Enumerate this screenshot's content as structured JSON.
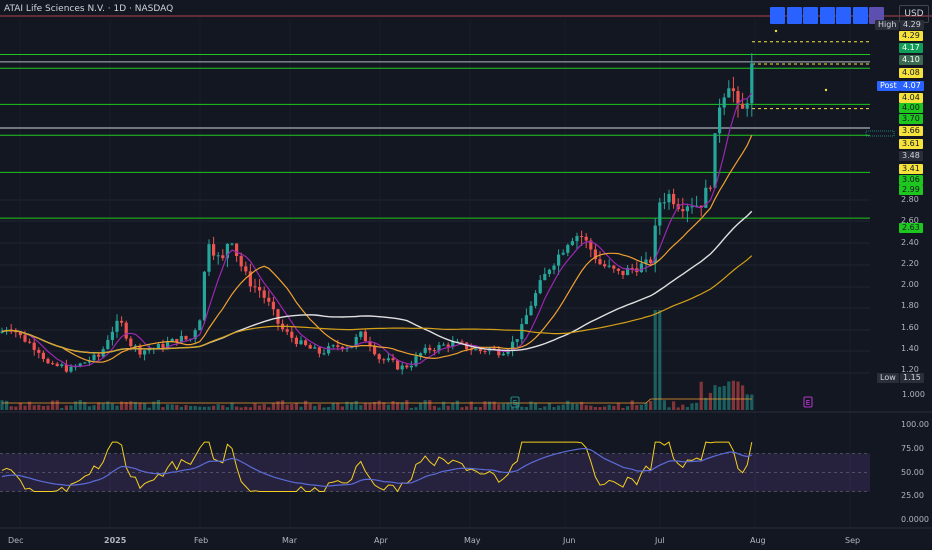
{
  "header": {
    "title": "ATAI Life Sciences N.V. · 1D · NASDAQ",
    "currency": "USD"
  },
  "toolbar": {
    "buttons": [
      "btn-1",
      "btn-2",
      "btn-3",
      "btn-4",
      "btn-5",
      "btn-6",
      "btn-7"
    ]
  },
  "price_axis": {
    "labels": [
      "2.80",
      "2.60",
      "2.40",
      "2.20",
      "2.00",
      "1.80",
      "1.60",
      "1.40",
      "1.20"
    ],
    "high_label": "High",
    "high_value": "4.29",
    "low_label": "Low",
    "low_value": "1.15",
    "post_label": "Post",
    "post_value": "4.07"
  },
  "price_tags": [
    {
      "v": "4.29",
      "bg": "#f5e33b",
      "fg": "#131722",
      "y": 36
    },
    {
      "v": "4.17",
      "bg": "#0f9d58",
      "fg": "#ffffff",
      "y": 48
    },
    {
      "v": "4.10",
      "bg": "#3d6b52",
      "fg": "#ffffff",
      "y": 60
    },
    {
      "v": "4.08",
      "bg": "#f5e33b",
      "fg": "#131722",
      "y": 73
    },
    {
      "v": "4.04",
      "bg": "#f5e33b",
      "fg": "#131722",
      "y": 98
    },
    {
      "v": "4.00",
      "bg": "#1ec71e",
      "fg": "#131722",
      "y": 108
    },
    {
      "v": "3.70",
      "bg": "#1ec71e",
      "fg": "#131722",
      "y": 119
    },
    {
      "v": "3.66",
      "bg": "#f5e33b",
      "fg": "#131722",
      "y": 131
    },
    {
      "v": "3.61",
      "bg": "#f5e33b",
      "fg": "#131722",
      "y": 144
    },
    {
      "v": "3.48",
      "bg": "#2a2e39",
      "fg": "#d1d4dc",
      "y": 156
    },
    {
      "v": "3.41",
      "bg": "#f5e33b",
      "fg": "#131722",
      "y": 169
    },
    {
      "v": "3.06",
      "bg": "#1ec71e",
      "fg": "#131722",
      "y": 180
    },
    {
      "v": "2.99",
      "bg": "#1ec71e",
      "fg": "#131722",
      "y": 190
    },
    {
      "v": "2.63",
      "bg": "#1ec71e",
      "fg": "#131722",
      "y": 228
    }
  ],
  "volume_axis": {
    "label": "1.000"
  },
  "rsi": {
    "labels": [
      "100.00",
      "75.00",
      "50.00",
      "25.00",
      "0.0000"
    ],
    "levels": [
      70,
      50,
      30
    ]
  },
  "x_axis": {
    "labels": [
      "Dec",
      "2025",
      "Feb",
      "Mar",
      "Apr",
      "May",
      "Jun",
      "Jul",
      "Aug",
      "Sep"
    ]
  },
  "markers": {
    "earnings": "E"
  },
  "colors": {
    "background": "#131722",
    "up": "#26a69a",
    "down": "#ef5350",
    "ma_fast": "#9c27b0",
    "ma_mid": "#f0a030",
    "ma_slow": "#e0e0e0",
    "ma_long": "#d4a017",
    "rsi": "#f5d020",
    "rsi_ma": "#5b6bd8",
    "level_green": "#1ec71e"
  },
  "chart_data": {
    "type": "candlestick",
    "symbol": "ATAI",
    "interval": "1D",
    "ylim": [
      1.0,
      4.35
    ],
    "high": 4.29,
    "low": 1.15,
    "horizontal_levels": [
      4.17,
      4.1,
      4.04,
      3.7,
      3.41,
      3.06,
      2.63
    ],
    "dashed_levels": [
      4.29,
      4.08,
      3.66
    ],
    "segments": [
      [
        0,
        1.55
      ],
      [
        10,
        1.62
      ],
      [
        20,
        1.52
      ],
      [
        30,
        1.45
      ],
      [
        40,
        1.38
      ],
      [
        50,
        1.22
      ],
      [
        60,
        1.24
      ],
      [
        70,
        1.2
      ],
      [
        80,
        1.25
      ],
      [
        90,
        1.3
      ],
      [
        100,
        1.33
      ],
      [
        110,
        1.55
      ],
      [
        120,
        1.66
      ],
      [
        130,
        1.45
      ],
      [
        140,
        1.38
      ],
      [
        150,
        1.4
      ],
      [
        160,
        1.42
      ],
      [
        170,
        1.46
      ],
      [
        180,
        1.5
      ],
      [
        190,
        1.48
      ],
      [
        200,
        1.7
      ],
      [
        208,
        2.45
      ],
      [
        215,
        2.3
      ],
      [
        222,
        2.2
      ],
      [
        230,
        2.5
      ],
      [
        238,
        2.25
      ],
      [
        245,
        2.1
      ],
      [
        252,
        2.0
      ],
      [
        260,
        1.95
      ],
      [
        270,
        1.8
      ],
      [
        280,
        1.6
      ],
      [
        290,
        1.52
      ],
      [
        300,
        1.45
      ],
      [
        310,
        1.4
      ],
      [
        320,
        1.36
      ],
      [
        330,
        1.4
      ],
      [
        340,
        1.43
      ],
      [
        350,
        1.42
      ],
      [
        360,
        1.54
      ],
      [
        370,
        1.45
      ],
      [
        380,
        1.3
      ],
      [
        390,
        1.28
      ],
      [
        400,
        1.22
      ],
      [
        410,
        1.25
      ],
      [
        420,
        1.35
      ],
      [
        430,
        1.4
      ],
      [
        440,
        1.42
      ],
      [
        450,
        1.45
      ],
      [
        460,
        1.44
      ],
      [
        470,
        1.4
      ],
      [
        480,
        1.38
      ],
      [
        490,
        1.4
      ],
      [
        500,
        1.37
      ],
      [
        510,
        1.42
      ],
      [
        520,
        1.55
      ],
      [
        530,
        1.8
      ],
      [
        540,
        2.0
      ],
      [
        550,
        2.18
      ],
      [
        560,
        2.3
      ],
      [
        570,
        2.45
      ],
      [
        580,
        2.48
      ],
      [
        590,
        2.35
      ],
      [
        600,
        2.2
      ],
      [
        610,
        2.15
      ],
      [
        620,
        2.1
      ],
      [
        630,
        2.15
      ],
      [
        640,
        2.18
      ],
      [
        650,
        2.2
      ],
      [
        660,
        2.8
      ],
      [
        670,
        2.85
      ],
      [
        680,
        2.75
      ],
      [
        690,
        2.78
      ],
      [
        700,
        2.75
      ],
      [
        710,
        2.95
      ],
      [
        720,
        3.75
      ],
      [
        730,
        3.95
      ],
      [
        740,
        3.55
      ],
      [
        748,
        3.8
      ],
      [
        752,
        4.05
      ]
    ]
  }
}
